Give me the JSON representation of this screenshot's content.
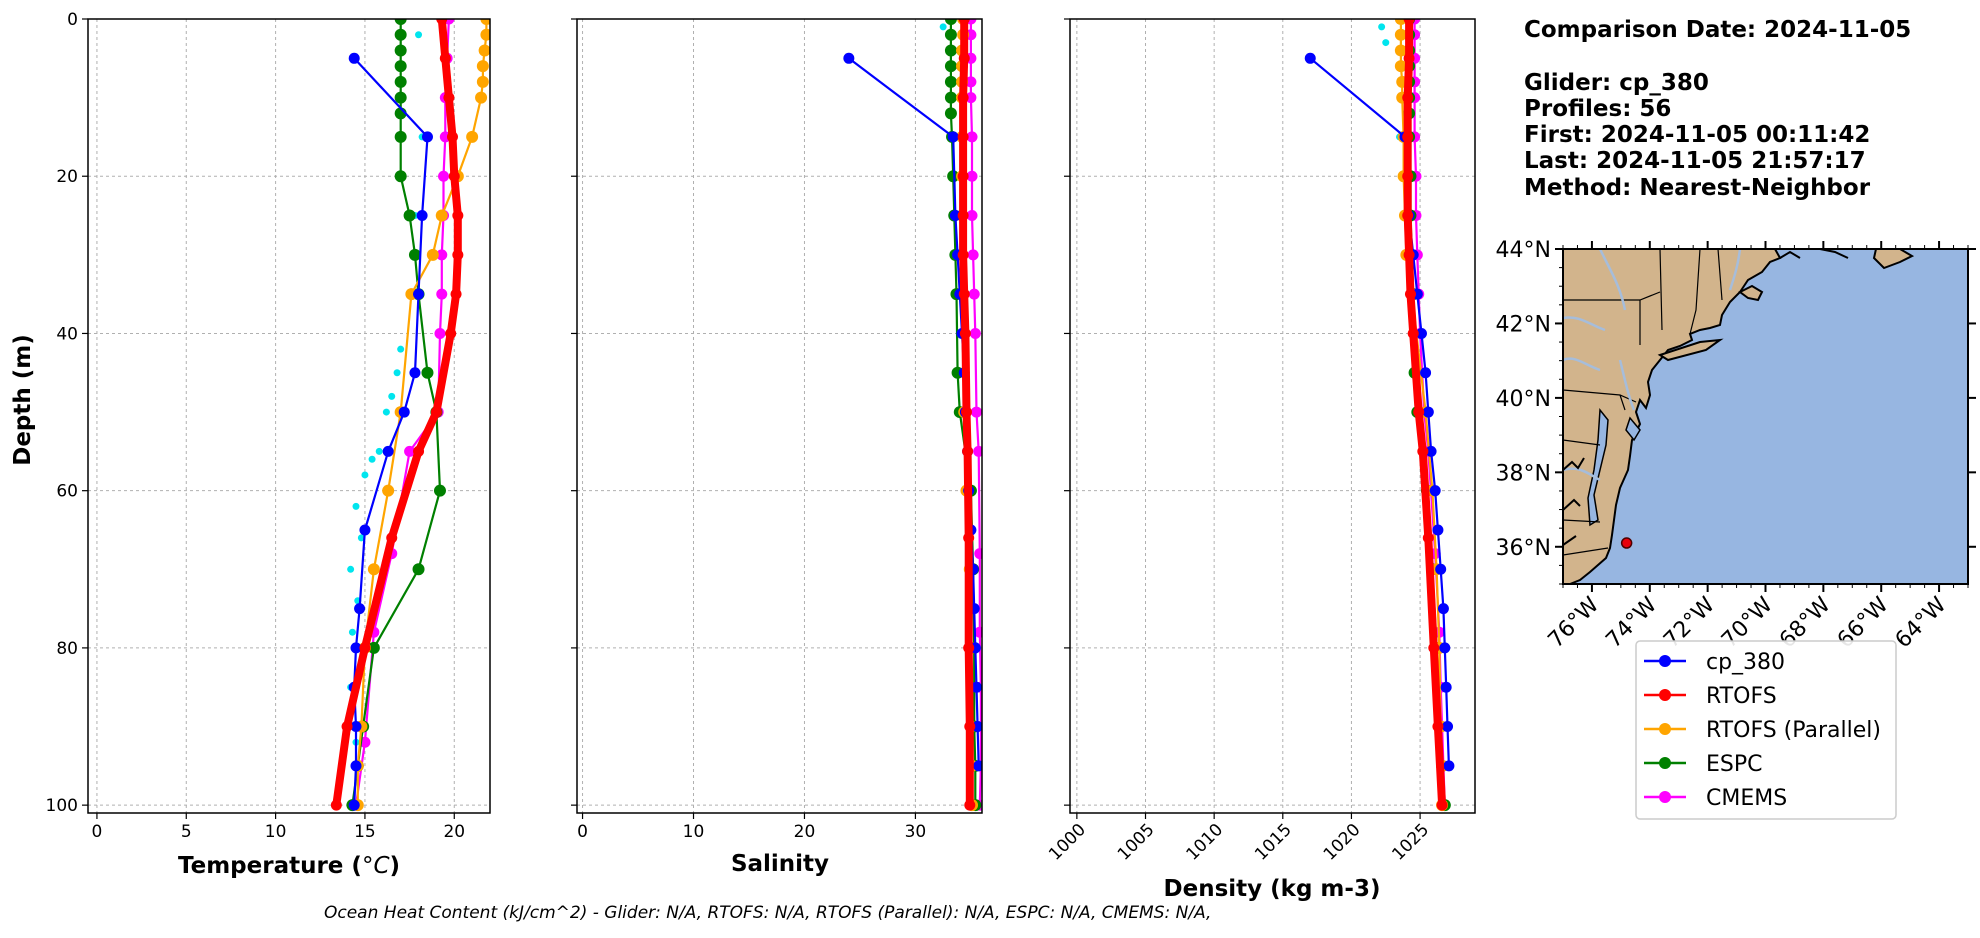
{
  "info": {
    "comparison_date": "Comparison Date: 2024-11-05",
    "glider": "Glider: cp_380",
    "profiles": "Profiles: 56",
    "first": "First: 2024-11-05 00:11:42",
    "last": "Last: 2024-11-05 21:57:17",
    "method": "Method: Nearest-Neighbor"
  },
  "footer": "Ocean Heat Content (kJ/cm^2) - Glider: N/A,  RTOFS: N/A,  RTOFS (Parallel): N/A,  ESPC: N/A,  CMEMS: N/A,",
  "colors": {
    "cp_380": "#0000ff",
    "RTOFS": "#ff0000",
    "RTOFS (Parallel)": "#ffa500",
    "ESPC": "#008000",
    "CMEMS": "#ff00ff",
    "glider_raw": "#00e5ee",
    "land": "#d2b48c",
    "ocean": "#97b6e1",
    "rivers": "#a6bddb"
  },
  "legend": [
    "cp_380",
    "RTOFS",
    "RTOFS (Parallel)",
    "ESPC",
    "CMEMS"
  ],
  "chart_data": [
    {
      "type": "line",
      "ylabel": "Depth (m)",
      "xlabel_main": "Temperature (",
      "xlabel_unit": "°C",
      "xlabel_close": ")",
      "xlim": [
        -0.5,
        22
      ],
      "ylim": [
        101,
        0
      ],
      "xticks": [
        0,
        5,
        10,
        15,
        20
      ],
      "yticks": [
        0,
        20,
        40,
        60,
        80,
        100
      ],
      "grid": true,
      "raw_glider": [
        [
          18,
          2
        ],
        [
          18.2,
          15
        ],
        [
          17.8,
          25
        ],
        [
          17.5,
          35
        ],
        [
          17,
          42
        ],
        [
          16.5,
          48
        ],
        [
          15.8,
          55
        ],
        [
          15,
          58
        ],
        [
          14.5,
          62
        ],
        [
          14.2,
          70
        ],
        [
          14.3,
          78
        ],
        [
          14.2,
          85
        ],
        [
          14.5,
          92
        ],
        [
          14.3,
          100
        ],
        [
          16.2,
          50
        ],
        [
          16.8,
          45
        ],
        [
          15.4,
          56
        ],
        [
          14.8,
          66
        ],
        [
          14.6,
          74
        ]
      ],
      "series": [
        {
          "name": "cp_380",
          "x": [
            14.4,
            18.5,
            18.2,
            18,
            17.8,
            17.2,
            16.3,
            15,
            14.7,
            14.5,
            14.4,
            14.5,
            14.5,
            14.4
          ],
          "y": [
            5,
            15,
            25,
            35,
            45,
            50,
            55,
            65,
            75,
            80,
            85,
            90,
            95,
            100
          ]
        },
        {
          "name": "RTOFS",
          "x": [
            19.3,
            19.5,
            19.7,
            19.9,
            20,
            20.2,
            20.2,
            20.1,
            19.8,
            19,
            18,
            16.5,
            15,
            14,
            13.4
          ],
          "y": [
            0,
            5,
            10,
            15,
            20,
            25,
            30,
            35,
            40,
            50,
            55,
            66,
            80,
            90,
            100
          ]
        },
        {
          "name": "RTOFS (Parallel)",
          "x": [
            21.8,
            21.8,
            21.7,
            21.6,
            21.6,
            21.5,
            21,
            20.2,
            19.3,
            18.8,
            17.6,
            17,
            16.3,
            15.5,
            15,
            14.8,
            14.6,
            14.6
          ],
          "y": [
            0,
            2,
            4,
            6,
            8,
            10,
            15,
            20,
            25,
            30,
            35,
            50,
            60,
            70,
            80,
            90,
            95,
            100
          ]
        },
        {
          "name": "ESPC",
          "x": [
            17,
            17,
            17,
            17,
            17,
            17,
            17,
            17,
            17,
            17.5,
            17.8,
            18,
            18.5,
            19,
            19.2,
            18,
            15.5,
            14.9,
            14.6,
            14.3
          ],
          "y": [
            0,
            2,
            4,
            6,
            8,
            10,
            12,
            15,
            20,
            25,
            30,
            35,
            45,
            50,
            60,
            70,
            80,
            90,
            95,
            100
          ]
        },
        {
          "name": "CMEMS",
          "x": [
            19.7,
            19.6,
            19.5,
            19.5,
            19.4,
            19.4,
            19.3,
            19.3,
            19.2,
            19.1,
            17.5,
            16.5,
            15.5,
            15,
            14.5
          ],
          "y": [
            0,
            5,
            10,
            15,
            20,
            25,
            30,
            35,
            40,
            50,
            55,
            68,
            78,
            92,
            100
          ]
        }
      ]
    },
    {
      "type": "line",
      "xlabel": "Salinity",
      "xlim": [
        -0.5,
        36
      ],
      "ylim": [
        101,
        0
      ],
      "xticks": [
        0,
        10,
        20,
        30
      ],
      "yticks": [
        0,
        20,
        40,
        60,
        80,
        100
      ],
      "grid": true,
      "raw_glider": [
        [
          32.5,
          1
        ],
        [
          33,
          2
        ],
        [
          34,
          20
        ],
        [
          34.2,
          40
        ],
        [
          34.6,
          55
        ],
        [
          35,
          60
        ],
        [
          35.2,
          70
        ],
        [
          35.3,
          80
        ],
        [
          35.5,
          90
        ],
        [
          35.4,
          100
        ],
        [
          34.8,
          65
        ],
        [
          35.1,
          75
        ]
      ],
      "series": [
        {
          "name": "cp_380",
          "x": [
            24,
            33.4,
            33.6,
            33.8,
            34,
            34.2,
            34.4,
            34.5,
            34.7,
            34.8,
            35,
            35.2,
            35.3,
            35.4,
            35.5,
            35.6,
            35.7
          ],
          "y": [
            5,
            15,
            25,
            30,
            35,
            40,
            45,
            50,
            55,
            60,
            65,
            70,
            75,
            80,
            85,
            90,
            95
          ]
        },
        {
          "name": "RTOFS",
          "x": [
            34.4,
            34.4,
            34.3,
            34.3,
            34.3,
            34.3,
            34.3,
            34.4,
            34.5,
            34.6,
            34.7,
            34.8,
            34.8,
            34.9,
            34.9
          ],
          "y": [
            0,
            5,
            10,
            15,
            20,
            25,
            30,
            35,
            40,
            50,
            55,
            66,
            80,
            90,
            100
          ]
        },
        {
          "name": "RTOFS (Parallel)",
          "x": [
            34.3,
            34.3,
            34.2,
            34.2,
            34.2,
            34.2,
            34.2,
            34.2,
            34.2,
            34.2,
            34.3,
            34.4,
            34.6,
            34.9,
            35,
            35,
            35.1,
            35.1
          ],
          "y": [
            0,
            2,
            4,
            6,
            8,
            10,
            15,
            20,
            25,
            30,
            35,
            50,
            60,
            70,
            80,
            90,
            95,
            100
          ]
        },
        {
          "name": "ESPC",
          "x": [
            33.2,
            33.2,
            33.2,
            33.2,
            33.2,
            33.2,
            33.2,
            33.3,
            33.4,
            33.5,
            33.6,
            33.7,
            33.8,
            34,
            35,
            35.2,
            35.3,
            35.3,
            35.4,
            35.4
          ],
          "y": [
            0,
            2,
            4,
            6,
            8,
            10,
            12,
            15,
            20,
            25,
            30,
            35,
            45,
            50,
            60,
            70,
            80,
            90,
            95,
            100
          ]
        },
        {
          "name": "CMEMS",
          "x": [
            35,
            35,
            35,
            35,
            35,
            35.1,
            35.1,
            35.1,
            35.2,
            35.3,
            35.4,
            35.5,
            35.7,
            35.8,
            35.8,
            35.9,
            35.9,
            35.9,
            35.8
          ],
          "y": [
            0,
            2,
            5,
            8,
            10,
            15,
            20,
            25,
            30,
            35,
            40,
            50,
            55,
            68,
            78,
            85,
            90,
            95,
            100
          ]
        }
      ]
    },
    {
      "type": "line",
      "xlabel": "Density (kg m-3)",
      "xlim": [
        999.5,
        1029
      ],
      "ylim": [
        101,
        0
      ],
      "xticks": [
        1000,
        1005,
        1010,
        1015,
        1020,
        1025
      ],
      "yticks": [
        0,
        20,
        40,
        60,
        80,
        100
      ],
      "grid": true,
      "raw_glider": [
        [
          1022.2,
          1
        ],
        [
          1022.5,
          3
        ],
        [
          1023.5,
          15
        ],
        [
          1024.5,
          40
        ],
        [
          1025.4,
          55
        ],
        [
          1025.8,
          60
        ],
        [
          1026.2,
          70
        ],
        [
          1026.4,
          80
        ],
        [
          1026.6,
          90
        ],
        [
          1026.7,
          100
        ],
        [
          1023.8,
          8
        ]
      ],
      "series": [
        {
          "name": "cp_380",
          "x": [
            1017,
            1023.9,
            1024.2,
            1024.5,
            1024.8,
            1025.1,
            1025.4,
            1025.6,
            1025.8,
            1026.1,
            1026.3,
            1026.5,
            1026.7,
            1026.8,
            1026.9,
            1027,
            1027.1
          ],
          "y": [
            5,
            15,
            25,
            30,
            35,
            40,
            45,
            50,
            55,
            60,
            65,
            70,
            75,
            80,
            85,
            90,
            95
          ]
        },
        {
          "name": "RTOFS",
          "x": [
            1024.2,
            1024.2,
            1024.1,
            1024.1,
            1024.1,
            1024.1,
            1024.2,
            1024.3,
            1024.5,
            1024.9,
            1025.2,
            1025.6,
            1026,
            1026.3,
            1026.6
          ],
          "y": [
            0,
            5,
            10,
            15,
            20,
            25,
            30,
            35,
            40,
            50,
            55,
            66,
            80,
            90,
            100
          ]
        },
        {
          "name": "RTOFS (Parallel)",
          "x": [
            1023.6,
            1023.6,
            1023.6,
            1023.6,
            1023.7,
            1023.7,
            1023.8,
            1023.8,
            1023.9,
            1024,
            1024.4,
            1025.4,
            1025.9,
            1026.2,
            1026.4,
            1026.5,
            1026.6,
            1026.6
          ],
          "y": [
            0,
            2,
            4,
            6,
            8,
            10,
            15,
            20,
            25,
            30,
            35,
            50,
            60,
            70,
            80,
            90,
            95,
            100
          ]
        },
        {
          "name": "ESPC",
          "x": [
            1024.2,
            1024.2,
            1024.2,
            1024.2,
            1024.2,
            1024.2,
            1024.2,
            1024.2,
            1024.3,
            1024.3,
            1024.4,
            1024.5,
            1024.6,
            1024.8,
            1025.5,
            1025.9,
            1026.2,
            1026.4,
            1026.6,
            1026.8
          ],
          "y": [
            0,
            2,
            4,
            6,
            8,
            10,
            12,
            15,
            20,
            25,
            30,
            35,
            45,
            50,
            60,
            70,
            80,
            90,
            95,
            100
          ]
        },
        {
          "name": "CMEMS",
          "x": [
            1024.6,
            1024.6,
            1024.6,
            1024.6,
            1024.6,
            1024.6,
            1024.7,
            1024.7,
            1024.8,
            1024.9,
            1025,
            1025.3,
            1025.6,
            1026.1,
            1026.4,
            1026.5,
            1026.6,
            1026.7,
            1026.8
          ],
          "y": [
            0,
            2,
            5,
            8,
            10,
            15,
            20,
            25,
            30,
            35,
            40,
            50,
            55,
            68,
            78,
            85,
            90,
            95,
            100
          ]
        }
      ]
    }
  ],
  "map": {
    "lon_range": [
      -77,
      -63
    ],
    "lat_range": [
      35,
      44
    ],
    "lon_ticks": [
      "76°W",
      "74°W",
      "72°W",
      "70°W",
      "68°W",
      "66°W",
      "64°W"
    ],
    "lat_ticks": [
      "44°N",
      "42°N",
      "40°N",
      "38°N",
      "36°N"
    ],
    "glider_position": {
      "lon": -74.8,
      "lat": 36.1
    }
  }
}
